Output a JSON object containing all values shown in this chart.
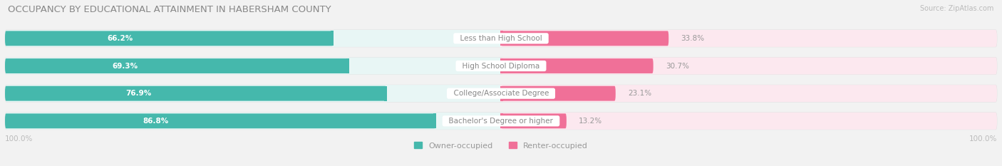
{
  "title": "OCCUPANCY BY EDUCATIONAL ATTAINMENT IN HABERSHAM COUNTY",
  "source": "Source: ZipAtlas.com",
  "categories": [
    "Less than High School",
    "High School Diploma",
    "College/Associate Degree",
    "Bachelor's Degree or higher"
  ],
  "owner_pct": [
    66.2,
    69.3,
    76.9,
    86.8
  ],
  "renter_pct": [
    33.8,
    30.7,
    23.1,
    13.2
  ],
  "owner_color": "#45B8AC",
  "renter_color": "#F07098",
  "owner_color_light": "#E8F6F5",
  "renter_color_light": "#FCE8EF",
  "row_bg_color": "#F5F5F5",
  "bg_color": "#F2F2F2",
  "title_color": "#888888",
  "pct_label_color": "#FFFFFF",
  "renter_pct_color": "#999999",
  "axis_label_color": "#BBBBBB",
  "category_label_color": "#888888",
  "legend_color": "#999999",
  "bar_height": 0.62,
  "axis_label_left": "100.0%",
  "axis_label_right": "100.0%"
}
